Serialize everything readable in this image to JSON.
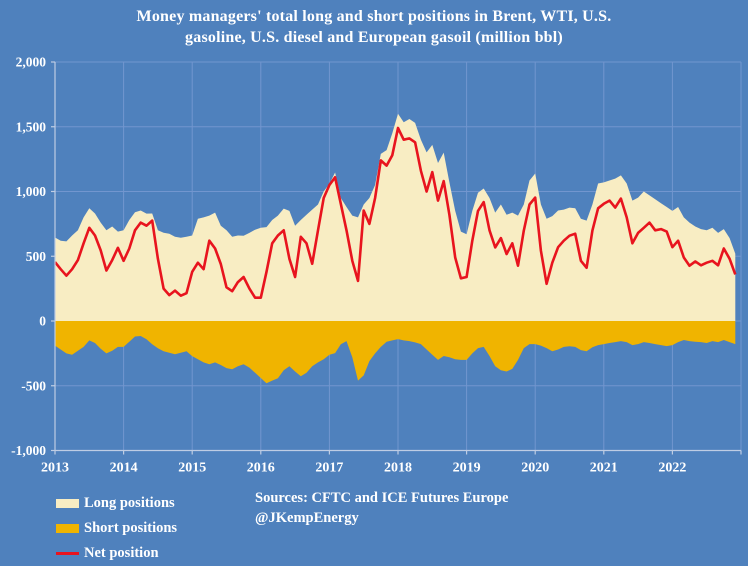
{
  "title": {
    "line1": "Money managers' total long and short positions in Brent, WTI, U.S.",
    "line2": "gasoline, U.S. diesel and European gasoil  (million bbl)"
  },
  "source": {
    "line1": "Sources: CFTC and ICE Futures Europe",
    "line2": "@JKempEnergy"
  },
  "colors": {
    "background": "#4f81bd",
    "gridline": "#7296cf",
    "axis": "#bfcde4",
    "text": "#ffffff",
    "long": "#f8edc3",
    "short": "#f0b400",
    "net": "#e8141e"
  },
  "legend": [
    {
      "label": "Long positions",
      "color": "#f8edc3",
      "type": "area"
    },
    {
      "label": "Short positions",
      "color": "#f0b400",
      "type": "area"
    },
    {
      "label": "Net position",
      "color": "#e8141e",
      "type": "line"
    }
  ],
  "chart_data": {
    "type": "area",
    "title": "Money managers' total long and short positions in Brent, WTI, U.S. gasoline, U.S. diesel and European gasoil (million bbl)",
    "xlabel": "",
    "ylabel": "million bbl",
    "grid": true,
    "legend_position": "bottom-left",
    "xlim": [
      2013,
      2023
    ],
    "ylim": [
      -1000,
      2000
    ],
    "x_ticks": [
      {
        "v": 2013,
        "label": "2013"
      },
      {
        "v": 2014,
        "label": "2014"
      },
      {
        "v": 2015,
        "label": "2015"
      },
      {
        "v": 2016,
        "label": "2016"
      },
      {
        "v": 2017,
        "label": "2017"
      },
      {
        "v": 2018,
        "label": "2018"
      },
      {
        "v": 2019,
        "label": "2019"
      },
      {
        "v": 2020,
        "label": "2020"
      },
      {
        "v": 2021,
        "label": "2021"
      },
      {
        "v": 2022,
        "label": "2022"
      }
    ],
    "y_ticks": [
      {
        "v": 2000,
        "label": "2,000"
      },
      {
        "v": 1500,
        "label": "1,500"
      },
      {
        "v": 1000,
        "label": "1,000"
      },
      {
        "v": 500,
        "label": "500"
      },
      {
        "v": 0,
        "label": "0"
      },
      {
        "v": -500,
        "label": "-500"
      },
      {
        "v": -1000,
        "label": "-1,000"
      }
    ],
    "x_start": 2013.0,
    "x_step": 0.0833333,
    "x_unit": "year (monthly samples)",
    "series": [
      {
        "name": "Long positions",
        "type": "area",
        "color": "#f8edc3",
        "baseline": 0,
        "values": [
          645,
          620,
          615,
          660,
          700,
          800,
          870,
          830,
          760,
          700,
          730,
          690,
          700,
          780,
          840,
          853,
          829,
          830,
          700,
          682,
          674,
          650,
          643,
          650,
          660,
          790,
          800,
          814,
          837,
          736,
          700,
          650,
          660,
          658,
          680,
          705,
          720,
          725,
          780,
          814,
          868,
          850,
          736,
          780,
          820,
          860,
          900,
          1000,
          1060,
          1147,
          950,
          880,
          814,
          800,
          900,
          950,
          1050,
          1290,
          1320,
          1450,
          1600,
          1535,
          1560,
          1530,
          1400,
          1302,
          1360,
          1220,
          1300,
          1070,
          850,
          690,
          670,
          850,
          990,
          1023,
          950,
          837,
          900,
          820,
          837,
          814,
          900,
          1085,
          1139,
          900,
          790,
          810,
          853,
          860,
          876,
          870,
          790,
          775,
          900,
          1062,
          1070,
          1085,
          1100,
          1124,
          1062,
          930,
          953,
          1000,
          970,
          940,
          910,
          880,
          850,
          880,
          800,
          760,
          730,
          710,
          700,
          720,
          680,
          710,
          640,
          520
        ]
      },
      {
        "name": "Short positions",
        "type": "area",
        "color": "#f0b400",
        "baseline": 0,
        "values": [
          -190,
          -220,
          -250,
          -260,
          -230,
          -200,
          -150,
          -170,
          -215,
          -250,
          -230,
          -200,
          -200,
          -160,
          -120,
          -116,
          -141,
          -180,
          -210,
          -233,
          -245,
          -256,
          -245,
          -233,
          -271,
          -295,
          -320,
          -334,
          -320,
          -340,
          -364,
          -372,
          -350,
          -334,
          -360,
          -400,
          -440,
          -481,
          -460,
          -442,
          -380,
          -349,
          -390,
          -426,
          -400,
          -349,
          -320,
          -295,
          -260,
          -248,
          -180,
          -155,
          -280,
          -460,
          -420,
          -310,
          -250,
          -200,
          -160,
          -150,
          -140,
          -150,
          -155,
          -165,
          -178,
          -220,
          -260,
          -300,
          -270,
          -280,
          -295,
          -300,
          -300,
          -250,
          -209,
          -200,
          -270,
          -350,
          -380,
          -390,
          -370,
          -300,
          -209,
          -178,
          -178,
          -190,
          -209,
          -233,
          -220,
          -200,
          -195,
          -200,
          -225,
          -233,
          -202,
          -186,
          -178,
          -170,
          -163,
          -155,
          -163,
          -186,
          -178,
          -163,
          -170,
          -178,
          -186,
          -194,
          -186,
          -163,
          -147,
          -155,
          -160,
          -163,
          -170,
          -155,
          -163,
          -147,
          -163,
          -178
        ]
      },
      {
        "name": "Net position",
        "type": "line",
        "color": "#e8141e",
        "values": [
          455,
          400,
          350,
          400,
          470,
          600,
          720,
          660,
          545,
          390,
          470,
          565,
          465,
          560,
          700,
          760,
          736,
          775,
          480,
          250,
          200,
          235,
          195,
          215,
          380,
          450,
          400,
          620,
          560,
          440,
          260,
          230,
          300,
          340,
          250,
          180,
          180,
          380,
          600,
          660,
          700,
          480,
          340,
          650,
          600,
          442,
          700,
          950,
          1050,
          1110,
          905,
          700,
          465,
          310,
          853,
          750,
          950,
          1240,
          1200,
          1280,
          1490,
          1400,
          1410,
          1380,
          1160,
          1000,
          1150,
          930,
          1080,
          820,
          490,
          330,
          340,
          620,
          850,
          918,
          700,
          568,
          640,
          517,
          600,
          427,
          698,
          900,
          953,
          543,
          287,
          450,
          570,
          620,
          659,
          674,
          465,
          411,
          698,
          870,
          905,
          930,
          876,
          945,
          800,
          600,
          680,
          720,
          760,
          700,
          710,
          690,
          570,
          620,
          490,
          427,
          460,
          430,
          450,
          465,
          430,
          560,
          480,
          360
        ]
      }
    ]
  }
}
